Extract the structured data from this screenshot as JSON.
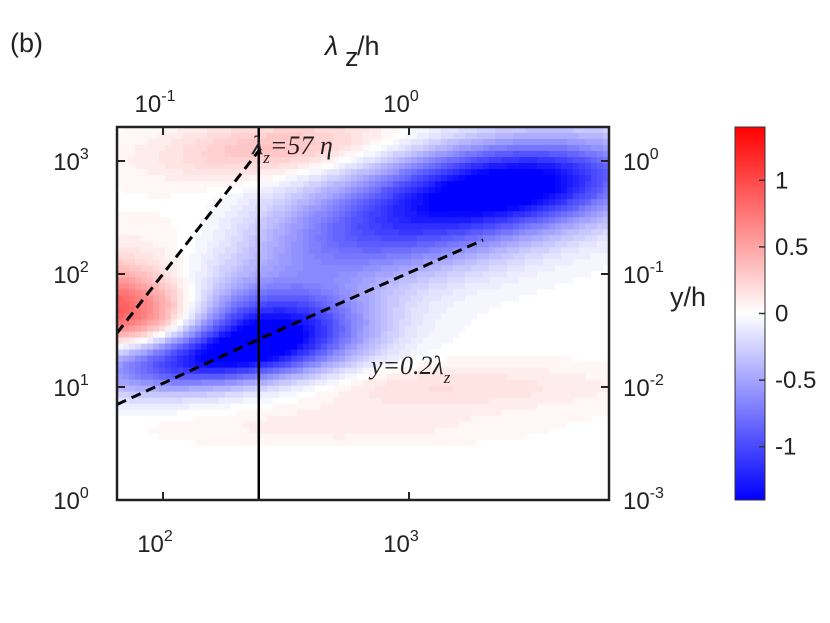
{
  "panel_label": "(b)",
  "chart_data": {
    "type": "heatmap",
    "xscale": "log",
    "yscale": "log",
    "xlim": [
      65,
      6500
    ],
    "ylim": [
      1,
      2000
    ],
    "x_ticks": [
      {
        "base": "10",
        "exp": "2",
        "value": 100
      },
      {
        "base": "10",
        "exp": "3",
        "value": 1000
      }
    ],
    "y_ticks": [
      {
        "base": "10",
        "exp": "0",
        "value": 1
      },
      {
        "base": "10",
        "exp": "1",
        "value": 10
      },
      {
        "base": "10",
        "exp": "2",
        "value": 100
      },
      {
        "base": "10",
        "exp": "3",
        "value": 1000
      }
    ],
    "top_axis": {
      "label_main": "λ",
      "label_sub": "z",
      "label_rest": "/h",
      "ticks": [
        {
          "base": "10",
          "exp": "-1",
          "value": 100
        },
        {
          "base": "10",
          "exp": "0",
          "value": 1000
        }
      ]
    },
    "right_axis": {
      "label": "y/h",
      "ticks": [
        {
          "base": "10",
          "exp": "-3",
          "value": 1
        },
        {
          "base": "10",
          "exp": "-2",
          "value": 10
        },
        {
          "base": "10",
          "exp": "-1",
          "value": 100
        },
        {
          "base": "10",
          "exp": "0",
          "value": 1000
        }
      ]
    },
    "vertical_line_x": 245,
    "dashed_lines": [
      {
        "name": "y=0.2λz",
        "points": [
          [
            65,
            7
          ],
          [
            250,
            27
          ],
          [
            2000,
            200
          ]
        ]
      },
      {
        "name": "λz=57η",
        "points": [
          [
            65,
            30
          ],
          [
            250,
            1300
          ]
        ]
      }
    ],
    "annotations": [
      {
        "text": "λ",
        "sub": "z",
        "rest": "=57 η",
        "x": 230,
        "y": 1150
      },
      {
        "text": "y=0.2λ",
        "sub": "z",
        "rest": "",
        "x": 700,
        "y": 13
      }
    ],
    "features": [
      {
        "sign": "positive",
        "peak": 1.0,
        "x": 70,
        "y": 45,
        "sx": 0.22,
        "sy": 0.35,
        "rot": 0.7
      },
      {
        "sign": "positive",
        "peak": 0.35,
        "x": 300,
        "y": 1300,
        "sx": 0.35,
        "sy": 0.18,
        "rot": 0.2
      },
      {
        "sign": "positive",
        "peak": 0.15,
        "x": 150,
        "y": 180,
        "sx": 0.3,
        "sy": 0.25,
        "rot": 0.6
      },
      {
        "sign": "negative",
        "peak": 1.2,
        "x": 130,
        "y": 17,
        "sx": 0.3,
        "sy": 0.18,
        "rot": 0.25
      },
      {
        "sign": "negative",
        "peak": 1.3,
        "x": 270,
        "y": 32,
        "sx": 0.28,
        "sy": 0.25,
        "rot": 0.6
      },
      {
        "sign": "negative",
        "peak": 1.0,
        "x": 1000,
        "y": 300,
        "sx": 0.55,
        "sy": 0.3,
        "rot": 0.6
      },
      {
        "sign": "negative",
        "peak": 1.0,
        "x": 3000,
        "y": 650,
        "sx": 0.35,
        "sy": 0.25,
        "rot": 0.3
      },
      {
        "sign": "positive",
        "peak": 0.18,
        "x": 1200,
        "y": 10,
        "sx": 0.55,
        "sy": 0.15,
        "rot": 0.0
      },
      {
        "sign": "positive",
        "peak": 0.1,
        "x": 500,
        "y": 4.5,
        "sx": 0.5,
        "sy": 0.12,
        "rot": 0.0
      }
    ],
    "colorbar": {
      "min": -1.4,
      "max": 1.4,
      "ticks": [
        {
          "label": "1",
          "value": 1
        },
        {
          "label": "0.5",
          "value": 0.5
        },
        {
          "label": "0",
          "value": 0
        },
        {
          "label": "-0.5",
          "value": -0.5
        },
        {
          "label": "-1",
          "value": -1
        }
      ],
      "colors": [
        "#0000ff",
        "#ffffff",
        "#ff0000"
      ]
    }
  }
}
